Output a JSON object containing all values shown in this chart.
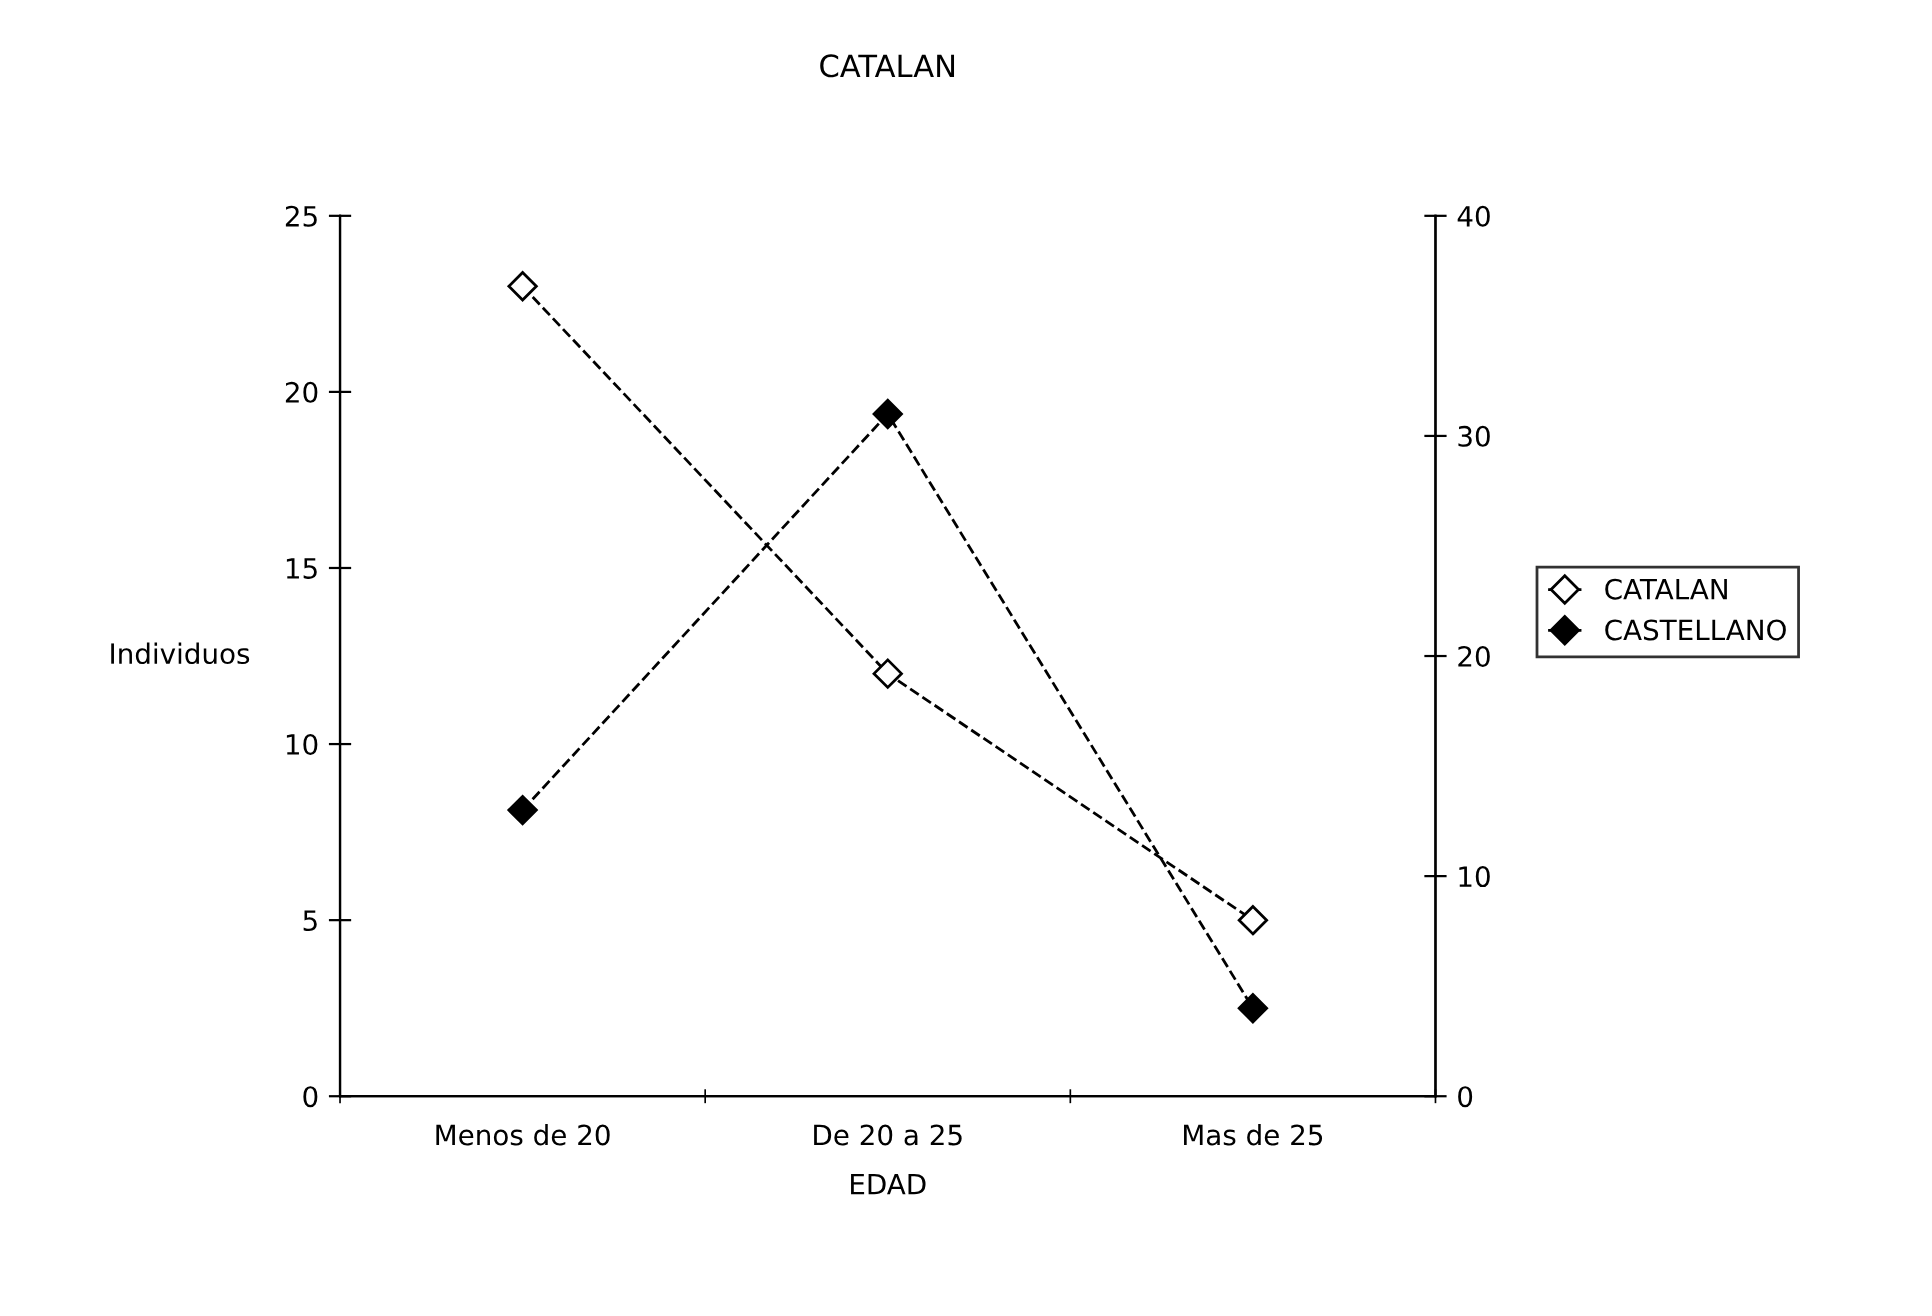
{
  "chart_data": {
    "type": "line",
    "title": "CATALAN",
    "xlabel": "EDAD",
    "ylabel": "Individuos",
    "categories": [
      "Menos de 20",
      "De 20 a 25",
      "Mas de 25"
    ],
    "series": [
      {
        "name": "CATALAN",
        "color": "#000000",
        "values": [
          23,
          12,
          5
        ]
      },
      {
        "name": "CASTELLANO",
        "color": "#000000",
        "values": [
          13,
          31,
          4
        ],
        "axis": "y2"
      }
    ],
    "ylim": [
      0,
      25
    ],
    "yticks": [
      0,
      5,
      10,
      15,
      20,
      25
    ],
    "y2lim": [
      0,
      40
    ],
    "y2ticks": [
      0,
      10,
      20,
      30,
      40
    ],
    "marker": "diamond",
    "line_style": "dashed",
    "grid": false,
    "legend": "right"
  }
}
